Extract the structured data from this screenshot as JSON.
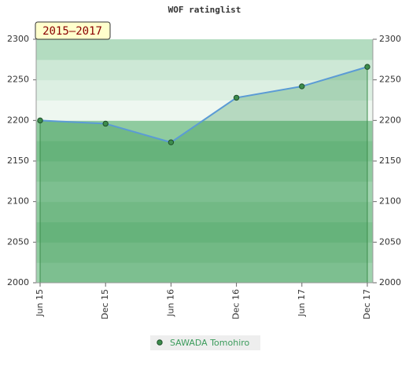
{
  "chart_data": {
    "type": "line",
    "title": "WOF ratinglist",
    "badge": "2015–2017",
    "categories": [
      "Jun 15",
      "Dec 15",
      "Jun 16",
      "Dec 16",
      "Jun 17",
      "Dec 17"
    ],
    "series": [
      {
        "name": "SAWADA Tomohiro",
        "color": "#5b9bd5",
        "marker_color": "#3c8c4c",
        "values": [
          2200,
          2196,
          2173,
          2228,
          2242,
          2266
        ]
      }
    ],
    "ylim": [
      2000,
      2300
    ],
    "yticks": [
      2000,
      2050,
      2100,
      2150,
      2200,
      2250,
      2300
    ],
    "y2lim": [
      2000,
      2300
    ],
    "y2ticks": [
      2000,
      2050,
      2100,
      2150,
      2200,
      2250,
      2300
    ]
  }
}
